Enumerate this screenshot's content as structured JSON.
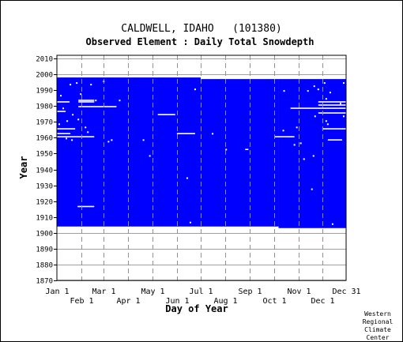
{
  "chart_data": {
    "type": "heatmap",
    "title": "CALDWELL, IDAHO   (101380)",
    "subtitle": "Observed Element : Daily Total Snowdepth",
    "xlabel": "Day of Year",
    "ylabel": "Year",
    "xlim": [
      1,
      365
    ],
    "ylim": [
      1870,
      2012
    ],
    "y_ticks": [
      1870,
      1880,
      1890,
      1900,
      1910,
      1920,
      1930,
      1940,
      1950,
      1960,
      1970,
      1980,
      1990,
      2000,
      2010
    ],
    "x_ticks_upper": [
      {
        "label": "Jan 1",
        "day": 1
      },
      {
        "label": "Mar 1",
        "day": 60
      },
      {
        "label": "May 1",
        "day": 121
      },
      {
        "label": "Jul 1",
        "day": 182
      },
      {
        "label": "Sep 1",
        "day": 244
      },
      {
        "label": "Nov 1",
        "day": 305
      },
      {
        "label": "Dec 31",
        "day": 365
      }
    ],
    "x_ticks_lower": [
      {
        "label": "Feb 1",
        "day": 32
      },
      {
        "label": "Apr 1",
        "day": 91
      },
      {
        "label": "Jun 1",
        "day": 152
      },
      {
        "label": "Aug 1",
        "day": 213
      },
      {
        "label": "Oct 1",
        "day": 274
      },
      {
        "label": "Dec 1",
        "day": 335
      }
    ],
    "grid": true,
    "series": [
      {
        "color": "#0000ff"
      }
    ],
    "coverage_blocks": [
      {
        "start_year": 1904,
        "end_year": 1997,
        "start_day": 1,
        "end_day": 182
      },
      {
        "start_year": 1904,
        "end_year": 1996,
        "start_day": 182,
        "end_day": 280
      },
      {
        "start_year": 1903,
        "end_year": 1996,
        "start_day": 280,
        "end_day": 365
      }
    ],
    "missing_segments": [
      {
        "year": 1916,
        "start_day": 27,
        "end_day": 48
      },
      {
        "year": 1960,
        "start_day": 1,
        "end_day": 48
      },
      {
        "year": 1962,
        "start_day": 1,
        "end_day": 18
      },
      {
        "year": 1965,
        "start_day": 1,
        "end_day": 24
      },
      {
        "year": 1976,
        "start_day": 1,
        "end_day": 12
      },
      {
        "year": 1982,
        "start_day": 1,
        "end_day": 17
      },
      {
        "year": 1982,
        "start_day": 28,
        "end_day": 48
      },
      {
        "year": 1983,
        "start_day": 28,
        "end_day": 48
      },
      {
        "year": 1979,
        "start_day": 28,
        "end_day": 76
      },
      {
        "year": 1974,
        "start_day": 128,
        "end_day": 150
      },
      {
        "year": 1962,
        "start_day": 152,
        "end_day": 175
      },
      {
        "year": 1952,
        "start_day": 238,
        "end_day": 242
      },
      {
        "year": 1960,
        "start_day": 275,
        "end_day": 300
      },
      {
        "year": 1978,
        "start_day": 295,
        "end_day": 365
      },
      {
        "year": 1982,
        "start_day": 330,
        "end_day": 365
      },
      {
        "year": 1980,
        "start_day": 330,
        "end_day": 365
      },
      {
        "year": 1975,
        "start_day": 330,
        "end_day": 365
      },
      {
        "year": 1965,
        "start_day": 335,
        "end_day": 365
      },
      {
        "year": 1958,
        "start_day": 342,
        "end_day": 360
      }
    ],
    "missing_points": [
      {
        "year": 1993,
        "day": 18
      },
      {
        "year": 1986,
        "day": 6
      },
      {
        "year": 1978,
        "day": 9
      },
      {
        "year": 1970,
        "day": 14
      },
      {
        "year": 1968,
        "day": 4
      },
      {
        "year": 1959,
        "day": 13
      },
      {
        "year": 1958,
        "day": 20
      },
      {
        "year": 1994,
        "day": 26
      },
      {
        "year": 1987,
        "day": 31
      },
      {
        "year": 1974,
        "day": 21
      },
      {
        "year": 1966,
        "day": 37
      },
      {
        "year": 1971,
        "day": 28
      },
      {
        "year": 1963,
        "day": 40
      },
      {
        "year": 1983,
        "day": 50
      },
      {
        "year": 1995,
        "day": 60
      },
      {
        "year": 1993,
        "day": 44
      },
      {
        "year": 1958,
        "day": 70
      },
      {
        "year": 1957,
        "day": 66
      },
      {
        "year": 1983,
        "day": 80
      },
      {
        "year": 1958,
        "day": 110
      },
      {
        "year": 1948,
        "day": 118
      },
      {
        "year": 1934,
        "day": 165
      },
      {
        "year": 1906,
        "day": 169
      },
      {
        "year": 1990,
        "day": 175
      },
      {
        "year": 1952,
        "day": 214
      },
      {
        "year": 1962,
        "day": 197
      },
      {
        "year": 1964,
        "day": 286
      },
      {
        "year": 1989,
        "day": 287
      },
      {
        "year": 1955,
        "day": 300
      },
      {
        "year": 1966,
        "day": 303
      },
      {
        "year": 1948,
        "day": 324
      },
      {
        "year": 1927,
        "day": 322
      },
      {
        "year": 1946,
        "day": 312
      },
      {
        "year": 1989,
        "day": 317
      },
      {
        "year": 1992,
        "day": 325
      },
      {
        "year": 1990,
        "day": 330
      },
      {
        "year": 1984,
        "day": 340
      },
      {
        "year": 1973,
        "day": 326
      },
      {
        "year": 1968,
        "day": 342
      },
      {
        "year": 1994,
        "day": 338
      },
      {
        "year": 1988,
        "day": 345
      },
      {
        "year": 1970,
        "day": 340
      },
      {
        "year": 1956,
        "day": 308
      },
      {
        "year": 1994,
        "day": 362
      },
      {
        "year": 1981,
        "day": 358
      },
      {
        "year": 1973,
        "day": 362
      },
      {
        "year": 1905,
        "day": 348
      }
    ]
  },
  "credit": [
    "Western",
    "Regional",
    "Climate",
    "Center"
  ]
}
